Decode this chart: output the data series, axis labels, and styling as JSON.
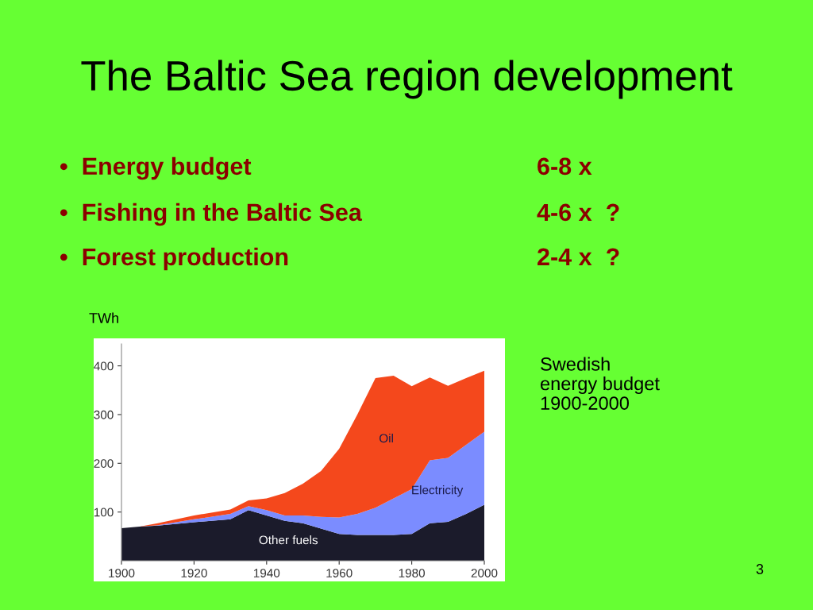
{
  "chart_data": {
    "type": "area",
    "stacked": true,
    "title": "The Baltic Sea region development",
    "annotations": [
      "•  Energy budget",
      "6-8 x",
      "•  Fishing in the Baltic Sea",
      "4-6 x  ?",
      "•  Forest production",
      "2-4 x  ?",
      "Swedish\nenergy budget\n1900-2000",
      "3"
    ],
    "ylabel": "TWh",
    "x": [
      1900,
      1905,
      1910,
      1920,
      1930,
      1935,
      1940,
      1945,
      1950,
      1955,
      1960,
      1965,
      1970,
      1975,
      1980,
      1985,
      1990,
      1995,
      2000
    ],
    "series": [
      {
        "name": "Other fuels",
        "color": "#1b1b2b",
        "values": [
          67,
          70,
          72,
          79,
          85,
          104,
          93,
          82,
          77,
          66,
          55,
          53,
          53,
          53,
          55,
          77,
          80,
          96,
          115
        ]
      },
      {
        "name": "Electricity",
        "color": "#7b8cff",
        "values": [
          0,
          0,
          1,
          6,
          11,
          8,
          11,
          11,
          16,
          24,
          34,
          43,
          56,
          75,
          92,
          129,
          131,
          142,
          150
        ]
      },
      {
        "name": "Oil",
        "color": "#f4481c",
        "values": [
          0,
          0,
          4,
          8,
          9,
          12,
          24,
          46,
          65,
          94,
          141,
          204,
          266,
          252,
          211,
          170,
          148,
          137,
          125
        ]
      }
    ],
    "xlim": [
      1900,
      2000
    ],
    "xticks": [
      1900,
      1920,
      1940,
      1960,
      1980,
      2000
    ],
    "ylim": [
      0,
      445
    ],
    "yticks": [
      100,
      200,
      300,
      400
    ],
    "grid": false,
    "legend": false
  }
}
